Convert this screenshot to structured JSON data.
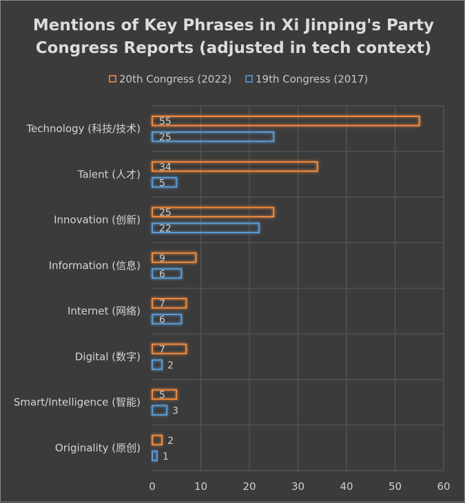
{
  "chart_data": {
    "type": "bar",
    "orientation": "horizontal",
    "title_lines": [
      "Mentions of Key Phrases in Xi Jinping's Party",
      "Congress Reports (adjusted in tech context)"
    ],
    "categories": [
      "Technology (科技/技术)",
      "Talent (人才)",
      "Innovation (创新)",
      "Information (信息)",
      "Internet (网络)",
      "Digital (数字)",
      "Smart/Intelligence (智能)",
      "Originality (原创)"
    ],
    "series": [
      {
        "name": "20th Congress (2022)",
        "color": "#f08a3c",
        "values": [
          55,
          34,
          25,
          9,
          7,
          7,
          5,
          2
        ]
      },
      {
        "name": "19th Congress (2017)",
        "color": "#5b9bd5",
        "values": [
          25,
          5,
          22,
          6,
          6,
          2,
          3,
          1
        ]
      }
    ],
    "xlim": [
      0,
      60
    ],
    "xticks": [
      0,
      10,
      20,
      30,
      40,
      50,
      60
    ],
    "grid": true,
    "legend": "top"
  }
}
